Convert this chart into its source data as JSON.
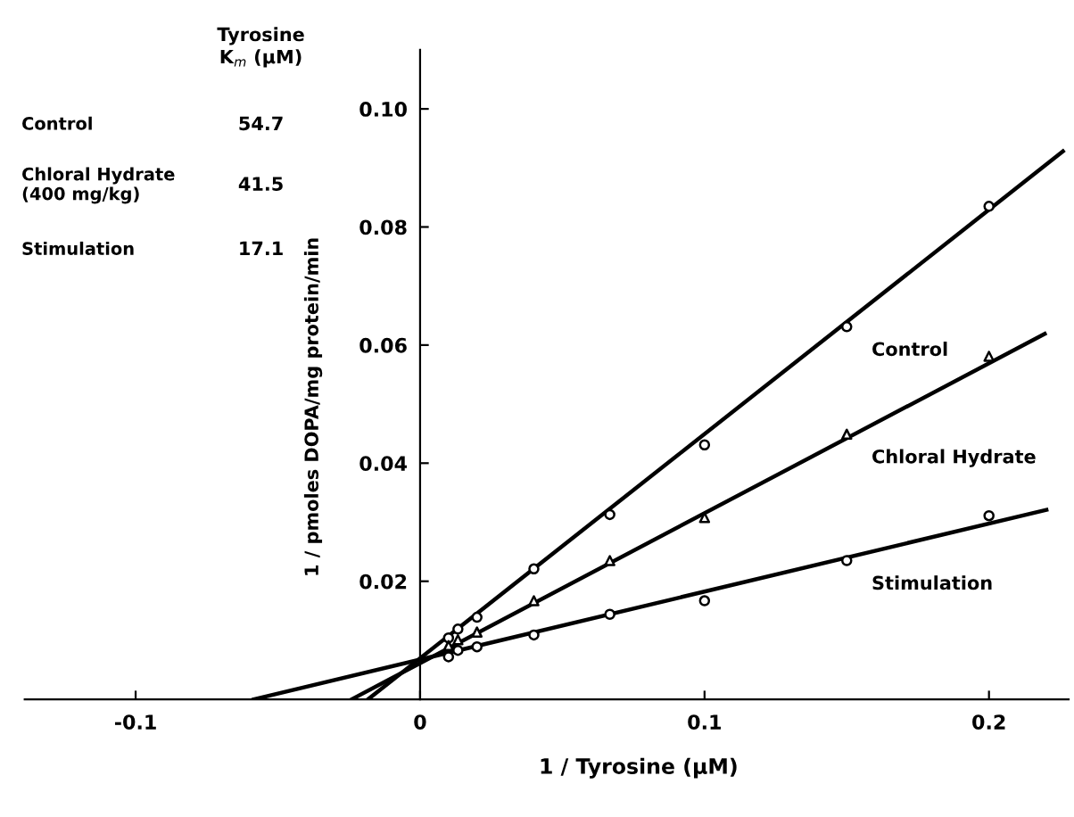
{
  "chart_data": {
    "type": "scatter",
    "xlabel": "1 / Tyrosine (μM)",
    "ylabel": "1 / pmoles DOPA/mg protein/min",
    "annotations": [
      "Tyrosine\nK$_{m}$ (μM)",
      "Control",
      "54.7",
      "Chloral Hydrate\n(400 mg/kg)",
      "41.5",
      "Stimulation",
      "17.1"
    ],
    "xlim": [
      -0.139,
      0.228
    ],
    "ylim": [
      0,
      0.11
    ],
    "xticks": [
      -0.1,
      0,
      0.1,
      0.2
    ],
    "yticks": [
      0.02,
      0.04,
      0.06,
      0.08,
      {
        "value": 0.1,
        "label": "0.10"
      }
    ],
    "grid": false,
    "legend": false,
    "series": [
      {
        "name": "Control",
        "color": "#000000",
        "marker": "circle",
        "x": [
          0.01,
          0.0133,
          0.02,
          0.04,
          0.0667,
          0.1,
          0.15,
          0.2
        ],
        "values": [
          0.0104,
          0.0119,
          0.0139,
          0.0221,
          0.0313,
          0.0431,
          0.0631,
          0.0835
        ]
      },
      {
        "name": "Chloral Hydrate",
        "color": "#000000",
        "marker": "triangle",
        "x": [
          0.01,
          0.0133,
          0.02,
          0.04,
          0.0667,
          0.1,
          0.15,
          0.2
        ],
        "values": [
          0.0091,
          0.0101,
          0.0114,
          0.0167,
          0.0235,
          0.0308,
          0.0449,
          0.0581
        ]
      },
      {
        "name": "Stimulation",
        "color": "#000000",
        "marker": "circle",
        "x": [
          0.01,
          0.0133,
          0.02,
          0.04,
          0.0667,
          0.1,
          0.15,
          0.2
        ],
        "values": [
          0.0072,
          0.0083,
          0.0089,
          0.0109,
          0.0144,
          0.0167,
          0.0235,
          0.0311
        ]
      },
      {
        "type": "line",
        "color": "#000000",
        "line_style": "solid",
        "x": [
          -0.0183,
          0.226
        ],
        "values": [
          0,
          0.0928
        ]
      },
      {
        "type": "line",
        "color": "#000000",
        "line_style": "solid",
        "x": [
          -0.0241,
          0.2196
        ],
        "values": [
          0,
          0.0619
        ]
      },
      {
        "type": "line",
        "color": "#000000",
        "line_style": "solid",
        "x": [
          -0.0585,
          0.2202
        ],
        "values": [
          0,
          0.0321
        ]
      }
    ]
  }
}
